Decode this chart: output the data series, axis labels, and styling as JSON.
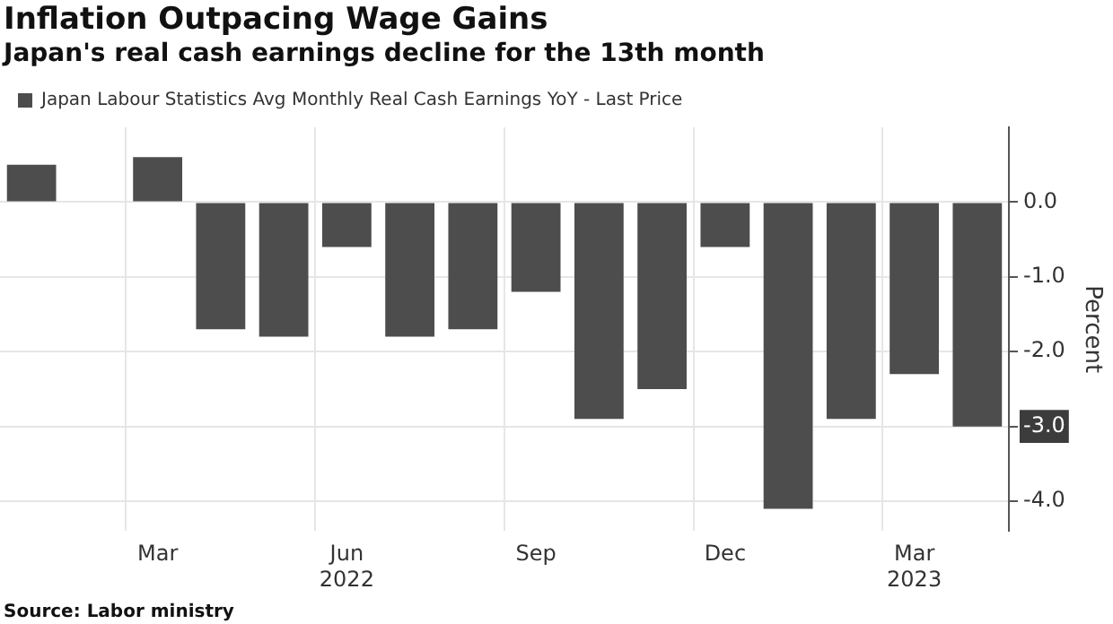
{
  "chart_data": {
    "type": "bar",
    "title": "Inflation Outpacing Wage Gains",
    "subtitle": "Japan's real cash earnings decline for the 13th month",
    "categories": [
      null,
      null,
      "Mar",
      null,
      null,
      "Jun\n2022",
      null,
      null,
      "Sep",
      null,
      null,
      "Dec",
      null,
      null,
      "Mar\n2023",
      null
    ],
    "series": [
      {
        "name": "Japan Labour Statistics Avg Monthly Real Cash Earnings YoY - Last Price",
        "color": "#4d4d4d",
        "values": [
          0.5,
          0.0,
          0.6,
          -1.7,
          -1.8,
          -0.6,
          -1.8,
          -1.7,
          -1.2,
          -2.9,
          -2.5,
          -0.6,
          -4.1,
          -2.9,
          -2.3,
          -3.0
        ]
      }
    ],
    "ylabel": "Percent",
    "ylim": [
      -4.4,
      1.0
    ],
    "yticks": [
      {
        "value": 0,
        "label": "0.0"
      },
      {
        "value": -1,
        "label": "-1.0"
      },
      {
        "value": -2,
        "label": "-2.0"
      },
      {
        "value": -3,
        "label": "-3.0"
      },
      {
        "value": -4,
        "label": "-4.0"
      }
    ],
    "grid": true,
    "legend": "top left",
    "annotations": [
      "Source: Labor ministry"
    ]
  }
}
